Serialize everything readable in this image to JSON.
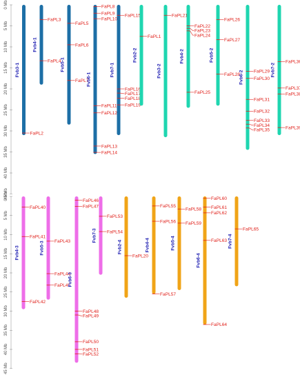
{
  "colors": {
    "background": "#ffffff",
    "gene_label": "#e0201a",
    "gene_tick": "#e0201a",
    "chromosome_label": "#1a1ab0",
    "axis_text": "#555555",
    "axis_line": "#888888"
  },
  "panels": [
    {
      "axis": {
        "unit": "Mb",
        "ticks": [
          0,
          5,
          10,
          15,
          20,
          25,
          30,
          35,
          40,
          45
        ],
        "tick_labels": [
          "0 Mb",
          "5 Mb",
          "10 Mb",
          "15 Mb",
          "20 Mb",
          "25 Mb",
          "30 Mb",
          "35 Mb",
          "40 Mb",
          "45 Mb"
        ]
      },
      "chromosomes": [
        {
          "name": "Fvb3-1",
          "length_mb": 31.0,
          "color": "#1d6fa6",
          "genes": [
            {
              "name": "FaPL2",
              "pos_mb": 30.5
            }
          ]
        },
        {
          "name": "Fvb4-1",
          "length_mb": 19.0,
          "color": "#1d6fa6",
          "genes": [
            {
              "name": "FaPL3",
              "pos_mb": 3.5
            },
            {
              "name": "FaPL4",
              "pos_mb": 13.3
            }
          ]
        },
        {
          "name": "Fvb5-1",
          "length_mb": 28.5,
          "color": "#1d6fa6",
          "genes": [
            {
              "name": "FaPL5",
              "pos_mb": 4.4
            },
            {
              "name": "FaPL6",
              "pos_mb": 9.5
            },
            {
              "name": "FaPL7",
              "pos_mb": 18.0
            }
          ]
        },
        {
          "name": "Fvb6-1",
          "length_mb": 35.5,
          "color": "#1d6fa6",
          "genes": [
            {
              "name": "FaPL8",
              "pos_mb": 0.4
            },
            {
              "name": "FaPL9",
              "pos_mb": 2.0
            },
            {
              "name": "FaPL10",
              "pos_mb": 3.3
            },
            {
              "name": "FaPL11",
              "pos_mb": 24.0
            },
            {
              "name": "FaPL12",
              "pos_mb": 25.7
            },
            {
              "name": "FaPL13",
              "pos_mb": 33.6
            },
            {
              "name": "FaPL14",
              "pos_mb": 35.1
            }
          ]
        },
        {
          "name": "Fvb7-1",
          "length_mb": 31.0,
          "color": "#1d6fa6",
          "genes": [
            {
              "name": "FaPL15",
              "pos_mb": 2.5
            },
            {
              "name": "FaPL16",
              "pos_mb": 20.0
            },
            {
              "name": "FaPL17",
              "pos_mb": 21.0
            },
            {
              "name": "FaPL18",
              "pos_mb": 22.2
            },
            {
              "name": "FaPL19",
              "pos_mb": 23.8
            }
          ]
        },
        {
          "name": "Fvb2-2",
          "length_mb": 24.0,
          "color": "#1fd6b0",
          "genes": [
            {
              "name": "FaPL1",
              "pos_mb": 7.5
            }
          ]
        },
        {
          "name": "Fvb3-2",
          "length_mb": 31.5,
          "color": "#1fd6b0",
          "genes": [
            {
              "name": "FaPL21",
              "pos_mb": 2.5
            }
          ]
        },
        {
          "name": "Fvb4-2",
          "length_mb": 24.5,
          "color": "#1fd6b0",
          "genes": [
            {
              "name": "FaPL22",
              "pos_mb": 5.0
            },
            {
              "name": "FaPL23",
              "pos_mb": 5.6
            },
            {
              "name": "FaPL24",
              "pos_mb": 6.2
            },
            {
              "name": "FaPL25",
              "pos_mb": 20.8
            }
          ]
        },
        {
          "name": "Fvb5-2",
          "length_mb": 24.0,
          "color": "#1fd6b0",
          "genes": [
            {
              "name": "FaPL26",
              "pos_mb": 3.5
            },
            {
              "name": "FaPL27",
              "pos_mb": 8.3
            },
            {
              "name": "FaPL28",
              "pos_mb": 16.5
            }
          ]
        },
        {
          "name": "Fvb6-2",
          "length_mb": 34.5,
          "color": "#1fd6b0",
          "genes": [
            {
              "name": "FaPL29",
              "pos_mb": 15.8
            },
            {
              "name": "FaPL30",
              "pos_mb": 17.5
            },
            {
              "name": "FaPL31",
              "pos_mb": 22.5
            },
            {
              "name": "FaPL32",
              "pos_mb": 25.3
            },
            {
              "name": "FaPL33",
              "pos_mb": 27.5
            },
            {
              "name": "FaPL34",
              "pos_mb": 28.4
            },
            {
              "name": "FaPL35",
              "pos_mb": 29.3
            }
          ]
        },
        {
          "name": "Fvb7-2",
          "length_mb": 31.0,
          "color": "#1fd6b0",
          "genes": [
            {
              "name": "FaPL36",
              "pos_mb": 13.5
            },
            {
              "name": "FaPL37",
              "pos_mb": 19.8
            },
            {
              "name": "FaPL38",
              "pos_mb": 21.2
            },
            {
              "name": "FaPL39",
              "pos_mb": 29.2
            }
          ]
        }
      ]
    },
    {
      "axis": {
        "unit": "Mb",
        "ticks": [
          0,
          5,
          10,
          15,
          20,
          25,
          30,
          35,
          40,
          45
        ],
        "tick_labels": [
          "0 Mb",
          "5 Mb",
          "10 Mb",
          "15 Mb",
          "20 Mb",
          "25 Mb",
          "30 Mb",
          "35 Mb",
          "40 Mb",
          "45 Mb"
        ]
      },
      "chromosomes": [
        {
          "name": "Fvb4-3",
          "length_mb": 29.5,
          "color": "#ee6ee8",
          "genes": [
            {
              "name": "FaPL40",
              "pos_mb": 2.8
            },
            {
              "name": "FaPL41",
              "pos_mb": 10.5
            },
            {
              "name": "FaPL42",
              "pos_mb": 27.5
            }
          ]
        },
        {
          "name": "Fvb5-3",
          "length_mb": 27.0,
          "color": "#ee6ee8",
          "genes": [
            {
              "name": "FaPL43",
              "pos_mb": 11.7
            },
            {
              "name": "FaPL44",
              "pos_mb": 20.2
            },
            {
              "name": "FaPL45",
              "pos_mb": 23.2
            }
          ]
        },
        {
          "name": "Fvb6-3",
          "length_mb": 43.5,
          "color": "#ee6ee8",
          "genes": [
            {
              "name": "FaPL46",
              "pos_mb": 1.0
            },
            {
              "name": "FaPL47",
              "pos_mb": 2.6
            },
            {
              "name": "FaPL48",
              "pos_mb": 30.0
            },
            {
              "name": "FaPL49",
              "pos_mb": 31.0
            },
            {
              "name": "FaPL50",
              "pos_mb": 38.0
            },
            {
              "name": "FaPL51",
              "pos_mb": 40.0
            },
            {
              "name": "FaPL52",
              "pos_mb": 41.2
            }
          ]
        },
        {
          "name": "Fvb7-3",
          "length_mb": 20.5,
          "color": "#ee6ee8",
          "genes": [
            {
              "name": "FaPL53",
              "pos_mb": 5.2
            },
            {
              "name": "FaPL54",
              "pos_mb": 9.2
            }
          ]
        },
        {
          "name": "Fvb2-4",
          "length_mb": 26.5,
          "color": "#f0a418",
          "genes": [
            {
              "name": "FaPL20",
              "pos_mb": 15.5
            }
          ]
        },
        {
          "name": "Fvb4-4",
          "length_mb": 25.5,
          "color": "#f0a418",
          "genes": [
            {
              "name": "FaPL55",
              "pos_mb": 2.5
            },
            {
              "name": "FaPL56",
              "pos_mb": 6.5
            },
            {
              "name": "FaPL57",
              "pos_mb": 25.5
            }
          ]
        },
        {
          "name": "Fvb5-4",
          "length_mb": 24.5,
          "color": "#f0a418",
          "genes": [
            {
              "name": "FaPL58",
              "pos_mb": 3.3
            },
            {
              "name": "FaPL59",
              "pos_mb": 7.0
            }
          ]
        },
        {
          "name": "Fvb6-4",
          "length_mb": 33.5,
          "color": "#f0a418",
          "genes": [
            {
              "name": "FaPL60",
              "pos_mb": 0.5
            },
            {
              "name": "FaPL61",
              "pos_mb": 2.8
            },
            {
              "name": "FaPL62",
              "pos_mb": 4.3
            },
            {
              "name": "FaPL63",
              "pos_mb": 11.5
            },
            {
              "name": "FaPL64",
              "pos_mb": 33.5
            }
          ]
        },
        {
          "name": "Fvb7-4",
          "length_mb": 23.5,
          "color": "#f0a418",
          "genes": [
            {
              "name": "FaPL65",
              "pos_mb": 8.5
            }
          ]
        }
      ]
    }
  ]
}
